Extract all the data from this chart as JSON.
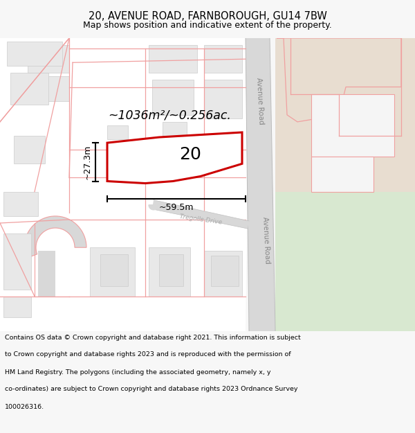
{
  "title": "20, AVENUE ROAD, FARNBOROUGH, GU14 7BW",
  "subtitle": "Map shows position and indicative extent of the property.",
  "footer_lines": [
    "Contains OS data © Crown copyright and database right 2021. This information is subject",
    "to Crown copyright and database rights 2023 and is reproduced with the permission of",
    "HM Land Registry. The polygons (including the associated geometry, namely x, y",
    "co-ordinates) are subject to Crown copyright and database rights 2023 Ordnance Survey",
    "100026316."
  ],
  "area_label": "~1036m²/~0.256ac.",
  "property_number": "20",
  "width_label": "~59.5m",
  "height_label": "~27.3m",
  "road_label": "Avenue Road",
  "street_label": "Tregolls Drive",
  "bg_color": "#f7f7f7",
  "map_bg": "#ffffff",
  "pink_line": "#f0a0a0",
  "red_line": "#cc0000",
  "gray_fill": "#e8e8e8",
  "building_fill": "#e8e0e0",
  "green_light": "#d8e8d0",
  "green_mid": "#c8dcc0",
  "tan_area": "#e8ddd0",
  "road_gray": "#d8d8d8",
  "title_fontsize": 10.5,
  "subtitle_fontsize": 9.0,
  "footer_fontsize": 6.8
}
